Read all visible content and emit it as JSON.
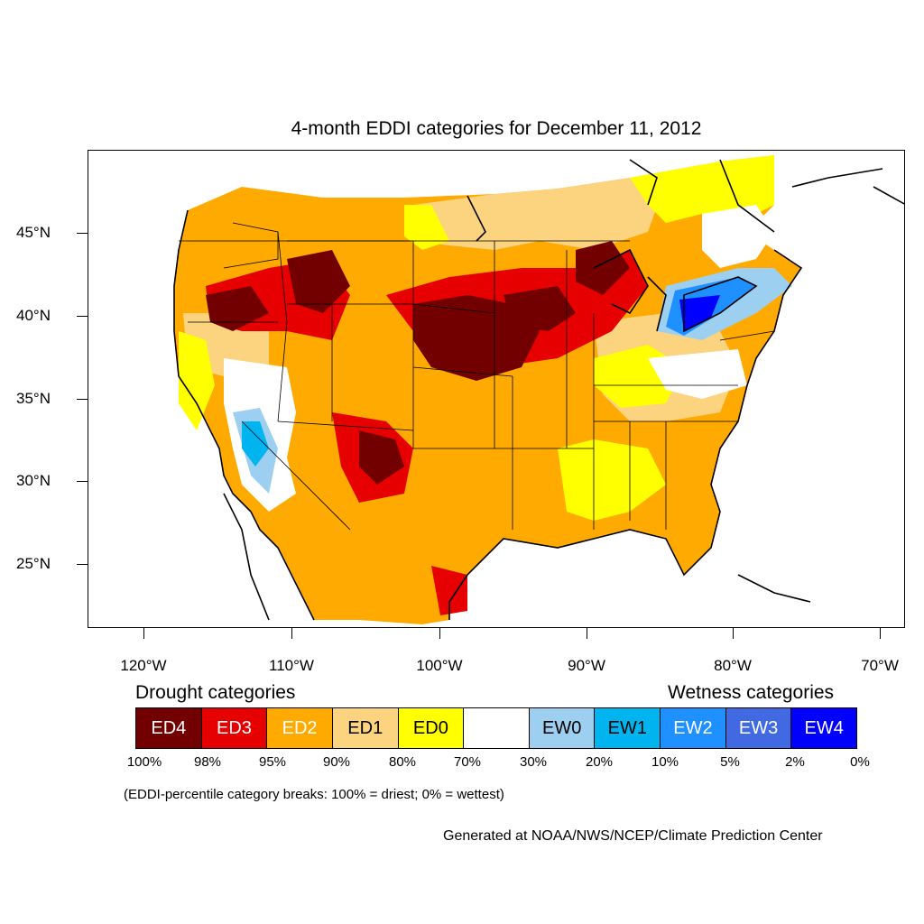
{
  "title": "4-month EDDI categories for December 11, 2012",
  "latitude_labels": [
    "45°N",
    "40°N",
    "35°N",
    "30°N",
    "25°N"
  ],
  "longitude_labels": [
    "120°W",
    "110°W",
    "100°W",
    "90°W",
    "80°W",
    "70°W"
  ],
  "legend": {
    "drought_heading": "Drought categories",
    "wetness_heading": "Wetness categories",
    "categories": [
      {
        "label": "ED4",
        "color": "#730000",
        "text_color": "#ffffff"
      },
      {
        "label": "ED3",
        "color": "#e60000",
        "text_color": "#ffffff"
      },
      {
        "label": "ED2",
        "color": "#ffaa00",
        "text_color": "#ffffff"
      },
      {
        "label": "ED1",
        "color": "#fcd37f",
        "text_color": "#000000"
      },
      {
        "label": "ED0",
        "color": "#ffff00",
        "text_color": "#000000"
      },
      {
        "label": "",
        "color": "#ffffff",
        "text_color": "#000000"
      },
      {
        "label": "EW0",
        "color": "#9dd0f0",
        "text_color": "#000000"
      },
      {
        "label": "EW1",
        "color": "#00b4f0",
        "text_color": "#000000"
      },
      {
        "label": "EW2",
        "color": "#1e90ff",
        "text_color": "#ffffff"
      },
      {
        "label": "EW3",
        "color": "#4169e1",
        "text_color": "#ffffff"
      },
      {
        "label": "EW4",
        "color": "#0000ff",
        "text_color": "#ffffff"
      }
    ],
    "breaks": [
      "100%",
      "98%",
      "95%",
      "90%",
      "80%",
      "70%",
      "30%",
      "20%",
      "10%",
      "5%",
      "2%",
      "0%"
    ],
    "note": "(EDDI-percentile category breaks: 100% = driest; 0% = wettest)"
  },
  "credit": "Generated at NOAA/NWS/NCEP/Climate Prediction Center"
}
